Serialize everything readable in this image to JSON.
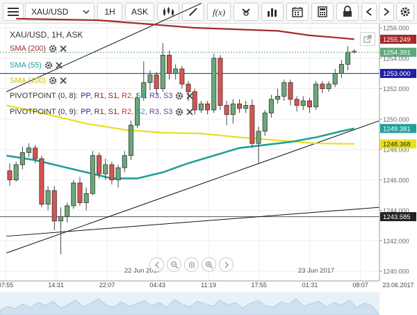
{
  "toolbar": {
    "symbol": "XAU/USD",
    "timeframe": "1H",
    "price_type": "ASK"
  },
  "legend": {
    "title": "XAU/USD, 1H, ASK",
    "sma200": "SMA (200)",
    "sma55": "SMA (55)",
    "sma100": "SMA (100)",
    "pivot8_prefix": "PIVOTPOINT (0, 8):",
    "pivot9_prefix": "PIVOTPOINT (0, 9):",
    "pivot_items": [
      "PP,",
      "R1,",
      "S1,",
      "R2,",
      "S2,",
      "R3,",
      "S3"
    ]
  },
  "colors": {
    "sma200": "#a52a2a",
    "sma55": "#20a09a",
    "sma100": "#e6e01e",
    "bull": "#6aa878",
    "bear": "#d9534f",
    "pp": "#1f1f9f",
    "r1": "#7a2020",
    "s1": "#7a2020",
    "r2": "#c0392b",
    "s2": "#20a09a",
    "r3": "#5a3fa0",
    "s3": "#5a3fa0"
  },
  "chart_data": {
    "type": "candlestick",
    "ylim": [
      1240.0,
      1256.4
    ],
    "y_ticks": [
      "1256.000",
      "1254.000",
      "1252.000",
      "1250.000",
      "1248.000",
      "1246.000",
      "1244.000",
      "1242.000",
      "1240.000"
    ],
    "x_ticks": [
      "07:55",
      "14:31",
      "22:07",
      "04:43",
      "11:19",
      "17:55",
      "01:31",
      "08:07"
    ],
    "date_labels": [
      "22 Jun 2017",
      "23 Jun 2017"
    ],
    "corner_date": "23.06.2017",
    "candles": [
      [
        1246.6,
        1246.0,
        1247.1,
        1245.6
      ],
      [
        1246.0,
        1247.0,
        1247.2,
        1245.9
      ],
      [
        1247.0,
        1247.8,
        1248.2,
        1246.7
      ],
      [
        1247.8,
        1248.1,
        1248.4,
        1247.5
      ],
      [
        1248.1,
        1247.4,
        1248.3,
        1247.1
      ],
      [
        1247.4,
        1244.4,
        1247.6,
        1244.2
      ],
      [
        1244.4,
        1245.3,
        1245.6,
        1244.0
      ],
      [
        1245.3,
        1243.3,
        1245.6,
        1242.7
      ],
      [
        1243.3,
        1243.6,
        1244.2,
        1241.1
      ],
      [
        1243.6,
        1244.3,
        1244.5,
        1243.2
      ],
      [
        1244.3,
        1245.8,
        1246.0,
        1244.1
      ],
      [
        1245.8,
        1244.5,
        1246.2,
        1244.3
      ],
      [
        1244.5,
        1245.1,
        1245.5,
        1244.0
      ],
      [
        1245.1,
        1247.6,
        1247.9,
        1245.0
      ],
      [
        1247.6,
        1246.4,
        1247.8,
        1246.1
      ],
      [
        1246.4,
        1247.0,
        1247.4,
        1246.0
      ],
      [
        1247.0,
        1246.0,
        1247.2,
        1245.7
      ],
      [
        1246.0,
        1246.8,
        1247.0,
        1245.5
      ],
      [
        1246.8,
        1247.6,
        1247.9,
        1246.5
      ],
      [
        1247.6,
        1249.6,
        1249.9,
        1247.3
      ],
      [
        1249.6,
        1251.4,
        1251.7,
        1249.4
      ],
      [
        1251.4,
        1252.4,
        1253.8,
        1251.2
      ],
      [
        1252.4,
        1252.9,
        1253.2,
        1251.9
      ],
      [
        1252.9,
        1252.0,
        1253.1,
        1251.6
      ],
      [
        1252.0,
        1254.2,
        1255.0,
        1251.8
      ],
      [
        1254.2,
        1253.0,
        1254.5,
        1252.6
      ],
      [
        1253.0,
        1253.3,
        1253.6,
        1252.6
      ],
      [
        1253.3,
        1252.3,
        1253.5,
        1252.0
      ],
      [
        1252.3,
        1251.8,
        1252.5,
        1251.2
      ],
      [
        1251.8,
        1250.6,
        1252.0,
        1250.3
      ],
      [
        1250.6,
        1251.0,
        1251.2,
        1250.4
      ],
      [
        1251.0,
        1250.6,
        1251.2,
        1250.3
      ],
      [
        1250.6,
        1254.0,
        1254.3,
        1250.4
      ],
      [
        1254.0,
        1250.9,
        1254.2,
        1250.6
      ],
      [
        1250.9,
        1250.3,
        1251.2,
        1249.6
      ],
      [
        1250.3,
        1251.0,
        1251.3,
        1249.7
      ],
      [
        1251.0,
        1250.7,
        1251.3,
        1250.4
      ],
      [
        1250.7,
        1250.9,
        1251.2,
        1250.4
      ],
      [
        1250.9,
        1248.4,
        1251.3,
        1248.1
      ],
      [
        1248.4,
        1249.2,
        1249.5,
        1247.1
      ],
      [
        1249.2,
        1250.4,
        1250.6,
        1248.9
      ],
      [
        1250.4,
        1251.3,
        1251.6,
        1250.1
      ],
      [
        1251.3,
        1251.5,
        1252.0,
        1251.0
      ],
      [
        1251.5,
        1252.4,
        1252.6,
        1251.2
      ],
      [
        1252.4,
        1251.3,
        1252.6,
        1250.9
      ],
      [
        1251.3,
        1250.9,
        1251.5,
        1250.5
      ],
      [
        1250.9,
        1251.2,
        1251.5,
        1250.6
      ],
      [
        1251.2,
        1250.8,
        1251.4,
        1250.4
      ],
      [
        1250.8,
        1252.3,
        1252.5,
        1250.6
      ],
      [
        1252.3,
        1252.0,
        1252.5,
        1251.7
      ],
      [
        1252.0,
        1252.3,
        1252.5,
        1251.8
      ],
      [
        1252.3,
        1253.0,
        1253.3,
        1252.1
      ],
      [
        1253.0,
        1253.6,
        1253.9,
        1252.7
      ],
      [
        1253.6,
        1254.4,
        1254.8,
        1253.2
      ],
      [
        1254.4,
        1254.45,
        1254.6,
        1254.3
      ]
    ],
    "sma200": [
      [
        1,
        1256.6
      ],
      [
        14,
        1256.5
      ],
      [
        29,
        1256.0
      ],
      [
        42,
        1255.8
      ],
      [
        47,
        1255.5
      ],
      [
        52,
        1255.33
      ],
      [
        54,
        1255.25
      ]
    ],
    "sma55": [
      [
        -0.5,
        1247.6
      ],
      [
        4,
        1247.3
      ],
      [
        8,
        1246.9
      ],
      [
        12,
        1246.5
      ],
      [
        16,
        1246.1
      ],
      [
        20,
        1246.1
      ],
      [
        24,
        1246.5
      ],
      [
        28,
        1247.1
      ],
      [
        32,
        1247.6
      ],
      [
        36,
        1248.1
      ],
      [
        40,
        1248.3
      ],
      [
        44,
        1248.5
      ],
      [
        48,
        1248.8
      ],
      [
        52,
        1249.2
      ],
      [
        54,
        1249.38
      ]
    ],
    "sma100": [
      [
        -0.5,
        1250.9
      ],
      [
        5,
        1250.4
      ],
      [
        12,
        1249.7
      ],
      [
        18,
        1249.3
      ],
      [
        24,
        1249.1
      ],
      [
        30,
        1249.05
      ],
      [
        36,
        1248.8
      ],
      [
        42,
        1248.6
      ],
      [
        48,
        1248.4
      ],
      [
        54,
        1248.37
      ]
    ],
    "trendlines": [
      {
        "from": [
          -0.5,
          1251.8
        ],
        "to": [
          30,
          1257.6
        ]
      },
      {
        "from": [
          -0.5,
          1241.2
        ],
        "to": [
          58,
          1249.9
        ]
      },
      {
        "from": [
          -0.5,
          1242.3
        ],
        "to": [
          58,
          1244.2
        ]
      }
    ],
    "hlines": [
      {
        "value": 1253.0,
        "color": "#1f1f9f"
      },
      {
        "value": 1243.585,
        "color": "#555555"
      }
    ],
    "current_price": 1254.391,
    "labels": [
      {
        "text": "1255.249",
        "value": 1255.249,
        "bg": "#a52a2a",
        "fg": "#ffffff"
      },
      {
        "text": "1254.391",
        "value": 1254.391,
        "bg": "#5fa87a",
        "fg": "#ffffff"
      },
      {
        "text": "1253.000",
        "value": 1253.0,
        "bg": "#1f1f9f",
        "fg": "#ffffff"
      },
      {
        "text": "1249.381",
        "value": 1249.381,
        "bg": "#20a09a",
        "fg": "#ffffff"
      },
      {
        "text": "1248.368",
        "value": 1248.368,
        "bg": "#e6e01e",
        "fg": "#222222"
      },
      {
        "text": "1243.585",
        "value": 1243.585,
        "bg": "#222222",
        "fg": "#ffffff"
      }
    ]
  }
}
